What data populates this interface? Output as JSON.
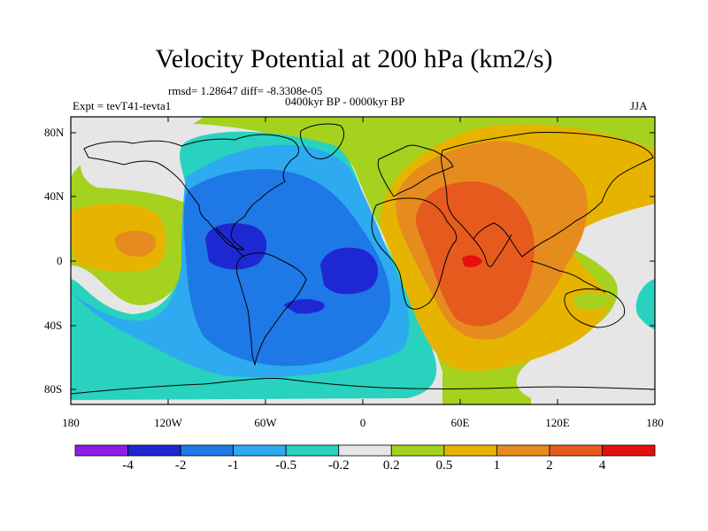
{
  "title": "Velocity Potential at 200 hPa (km2/s)",
  "stats": "rmsd= 1.28647 diff= -8.3308e-05",
  "period": "0400kyr BP - 0000kyr BP",
  "expt": "Expt = tevT41-tevta1",
  "season": "JJA",
  "y_axis": [
    "80N",
    "40N",
    "0",
    "40S",
    "80S"
  ],
  "x_axis": [
    "180",
    "120W",
    "60W",
    "0",
    "60E",
    "120E",
    "180"
  ],
  "colorbar": {
    "colors": [
      "#8c1ee6",
      "#1e28d2",
      "#1e78e6",
      "#2daaf0",
      "#28d2be",
      "#e6e6e6",
      "#a5d21e",
      "#e6b400",
      "#e68c1e",
      "#e65a1e",
      "#e60f0f"
    ],
    "labels": [
      "-4",
      "-2",
      "-1",
      "-0.5",
      "-0.2",
      "0.2",
      "0.5",
      "1",
      "2",
      "4"
    ]
  }
}
